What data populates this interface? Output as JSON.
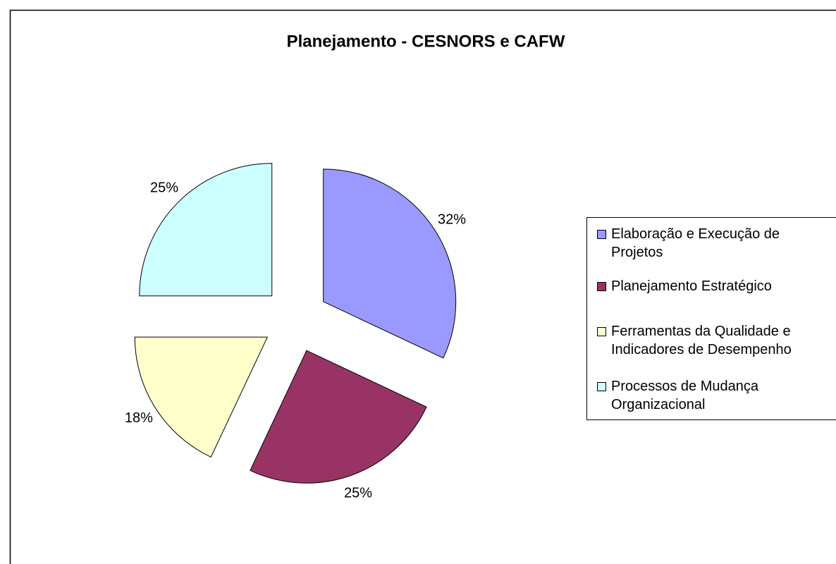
{
  "chart_data": {
    "type": "pie",
    "title": "Planejamento - CESNORS e CAFW",
    "categories": [
      "Elaboração e Execução de Projetos",
      "Planejamento Estratégico",
      "Ferramentas da Qualidade e Indicadores de Desempenho",
      "Processos de Mudança Organizacional"
    ],
    "values": [
      32,
      25,
      18,
      25
    ],
    "value_labels": [
      "32%",
      "25%",
      "18%",
      "25%"
    ],
    "colors": [
      "#9999ff",
      "#993366",
      "#ffffcc",
      "#ccffff"
    ],
    "legend": "right"
  }
}
